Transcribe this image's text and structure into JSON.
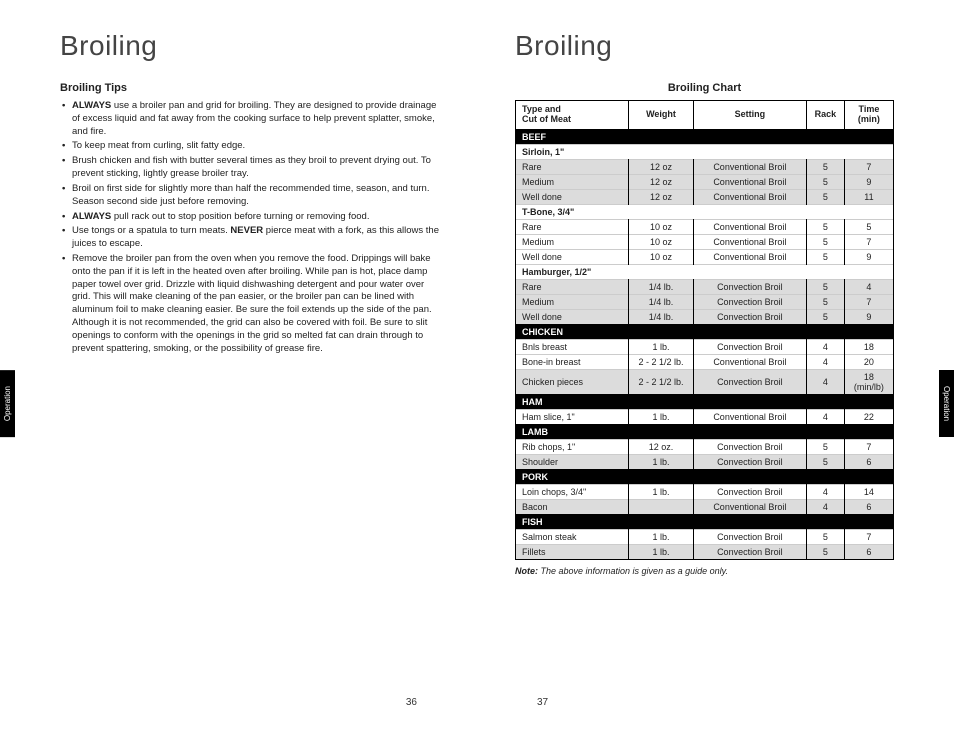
{
  "left": {
    "title": "Broiling",
    "tips_heading": "Broiling Tips",
    "tips": [
      "<b>ALWAYS</b> use a broiler pan and grid for broiling. They are designed to provide drainage of excess liquid and fat away from the cooking surface to help prevent splatter, smoke, and fire.",
      "To keep meat from curling, slit fatty edge.",
      "Brush chicken and fish with butter several times as they broil to prevent drying out. To prevent sticking, lightly grease broiler tray.",
      "Broil on first side for slightly more than half the recommended time, season, and turn. Season second side just before removing.",
      "<b>ALWAYS</b> pull rack out to stop position before turning or removing food.",
      "Use tongs or a spatula to turn meats. <b>NEVER</b> pierce meat with a fork, as this allows the juices to escape.",
      "Remove the broiler pan from the oven when you remove the food. Drippings will bake onto the pan if it is left in the heated oven after broiling. While pan is hot, place damp paper towel over grid. Drizzle with liquid dishwashing detergent and pour water over grid. This will make cleaning of the pan easier, or the broiler pan can be lined with aluminum foil to make cleaning easier. Be sure the foil extends up the side of the pan. Although it is not recommended, the grid can also be covered with foil. Be sure to slit openings to conform with the openings in the grid so melted fat can drain through to prevent spattering, smoking, or the possibility of grease fire."
    ],
    "tab": "Operation",
    "page_num": "36"
  },
  "right": {
    "title": "Broiling",
    "chart_heading": "Broiling Chart",
    "tab": "Operation",
    "page_num": "37",
    "note_label": "Note:",
    "note_text": " The above information is given as a guide only.",
    "headers": [
      "Type and\nCut of Meat",
      "Weight",
      "Setting",
      "Rack",
      "Time\n(min)"
    ],
    "rows": [
      {
        "t": "cat",
        "c": [
          "BEEF"
        ]
      },
      {
        "t": "sub",
        "c": [
          "Sirloin, 1\""
        ]
      },
      {
        "t": "shade",
        "c": [
          "Rare",
          "12 oz",
          "Conventional Broil",
          "5",
          "7"
        ]
      },
      {
        "t": "shade",
        "c": [
          "Medium",
          "12 oz",
          "Conventional Broil",
          "5",
          "9"
        ]
      },
      {
        "t": "shade",
        "c": [
          "Well done",
          "12 oz",
          "Conventional Broil",
          "5",
          "11"
        ]
      },
      {
        "t": "sub",
        "c": [
          "T-Bone, 3/4\""
        ]
      },
      {
        "t": "row",
        "c": [
          "Rare",
          "10 oz",
          "Conventional Broil",
          "5",
          "5"
        ]
      },
      {
        "t": "row",
        "c": [
          "Medium",
          "10 oz",
          "Conventional Broil",
          "5",
          "7"
        ]
      },
      {
        "t": "row",
        "c": [
          "Well done",
          "10 oz",
          "Conventional Broil",
          "5",
          "9"
        ]
      },
      {
        "t": "sub",
        "c": [
          "Hamburger, 1/2\""
        ]
      },
      {
        "t": "shade",
        "c": [
          "Rare",
          "1/4 lb.",
          "Convection Broil",
          "5",
          "4"
        ]
      },
      {
        "t": "shade",
        "c": [
          "Medium",
          "1/4 lb.",
          "Convection Broil",
          "5",
          "7"
        ]
      },
      {
        "t": "shade",
        "c": [
          "Well done",
          "1/4 lb.",
          "Convection Broil",
          "5",
          "9"
        ]
      },
      {
        "t": "cat",
        "c": [
          "CHICKEN"
        ]
      },
      {
        "t": "row",
        "c": [
          "Bnls breast",
          "1 lb.",
          "Convection Broil",
          "4",
          "18"
        ]
      },
      {
        "t": "row",
        "c": [
          "Bone-in breast",
          "2 - 2 1/2 lb.",
          "Conventional Broil",
          "4",
          "20"
        ]
      },
      {
        "t": "shade",
        "c": [
          "Chicken pieces",
          "2 - 2 1/2 lb.",
          "Convection Broil",
          "4",
          "18 (min/lb)"
        ]
      },
      {
        "t": "cat",
        "c": [
          "HAM"
        ]
      },
      {
        "t": "row",
        "c": [
          "Ham slice, 1\"",
          "1 lb.",
          "Conventional Broil",
          "4",
          "22"
        ]
      },
      {
        "t": "cat",
        "c": [
          "LAMB"
        ]
      },
      {
        "t": "row",
        "c": [
          "Rib chops, 1\"",
          "12 oz.",
          "Convection Broil",
          "5",
          "7"
        ]
      },
      {
        "t": "shade",
        "c": [
          "Shoulder",
          "1 lb.",
          "Convection Broil",
          "5",
          "6"
        ]
      },
      {
        "t": "cat",
        "c": [
          "PORK"
        ]
      },
      {
        "t": "row",
        "c": [
          "Loin chops, 3/4\"",
          "1 lb.",
          "Convection Broil",
          "4",
          "14"
        ]
      },
      {
        "t": "shade",
        "c": [
          "Bacon",
          "",
          "Conventional Broil",
          "4",
          "6"
        ]
      },
      {
        "t": "cat",
        "c": [
          "FISH"
        ]
      },
      {
        "t": "row",
        "c": [
          "Salmon steak",
          "1 lb.",
          "Convection Broil",
          "5",
          "7"
        ]
      },
      {
        "t": "shade",
        "c": [
          "Fillets",
          "1 lb.",
          "Convection Broil",
          "5",
          "6"
        ]
      }
    ],
    "col_widths": [
      "30%",
      "17%",
      "30%",
      "10%",
      "13%"
    ]
  }
}
